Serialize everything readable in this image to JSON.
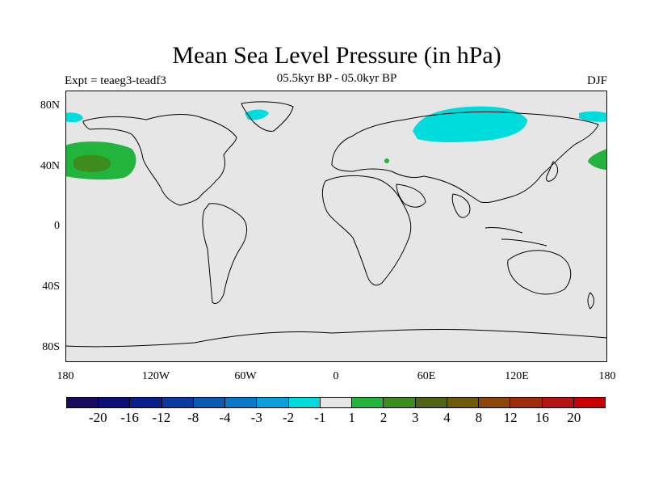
{
  "title": "Mean Sea Level Pressure (in hPa)",
  "experiment": "Expt = teaeg3-teadf3",
  "period": "05.5kyr BP - 05.0kyr BP",
  "season": "DJF",
  "lat_labels": [
    "80N",
    "40N",
    "0",
    "40S",
    "80S"
  ],
  "lon_labels": [
    "180",
    "120W",
    "60W",
    "0",
    "60E",
    "120E",
    "180"
  ],
  "colorbar": {
    "colors": [
      "#1a0b5e",
      "#0e0e78",
      "#0a1f8c",
      "#0a3aa0",
      "#0a5ab4",
      "#0a78c8",
      "#0aa0dc",
      "#00dcdc",
      "#e6e6e6",
      "#22b43c",
      "#3c8c1e",
      "#506414",
      "#6e5a0a",
      "#8c460a",
      "#a02d0a",
      "#b41414",
      "#c80000"
    ],
    "labels": [
      "-20",
      "-16",
      "-12",
      "-8",
      "-4",
      "-3",
      "-2",
      "-1",
      "1",
      "2",
      "3",
      "4",
      "8",
      "12",
      "16",
      "20"
    ]
  },
  "chart_data": {
    "type": "heatmap",
    "title": "Mean Sea Level Pressure (in hPa)",
    "subtitle": "05.5kyr BP - 05.0kyr BP",
    "xlabel": "",
    "ylabel": "",
    "x_range": [
      -180,
      180
    ],
    "y_range": [
      -90,
      90
    ],
    "x_ticks": [
      "180",
      "120W",
      "60W",
      "0",
      "60E",
      "120E",
      "180"
    ],
    "y_ticks": [
      "80N",
      "40N",
      "0",
      "40S",
      "80S"
    ],
    "levels": [
      -20,
      -16,
      -12,
      -8,
      -4,
      -3,
      -2,
      -1,
      1,
      2,
      3,
      4,
      8,
      12,
      16,
      20
    ],
    "background_class": "-1 to 1",
    "anomaly_regions": [
      {
        "region": "North Pacific (west of North America)",
        "lon_center": -162,
        "lat_center": 43,
        "class": "1 to 2"
      },
      {
        "region": "North Pacific core",
        "lon_center": -163,
        "lat_center": 42,
        "class": "2 to 3"
      },
      {
        "region": "North-West Pacific (east of Japan)",
        "lon_center": 178,
        "lat_center": 45,
        "class": "1 to 2"
      },
      {
        "region": "Black Sea / Caucasus",
        "lon_center": 35,
        "lat_center": 45,
        "class": "1 to 2"
      },
      {
        "region": "Northern Siberia / Arctic",
        "lon_center": 90,
        "lat_center": 70,
        "class": "-2 to -1"
      },
      {
        "region": "Greenland south-east",
        "lon_center": -35,
        "lat_center": 78,
        "class": "-2 to -1"
      },
      {
        "region": "Bering Strait / Alaska edge",
        "lon_center": -172,
        "lat_center": 72,
        "class": "-2 to -1"
      },
      {
        "region": "Far-east Siberia",
        "lon_center": 172,
        "lat_center": 72,
        "class": "-2 to -1"
      }
    ]
  }
}
